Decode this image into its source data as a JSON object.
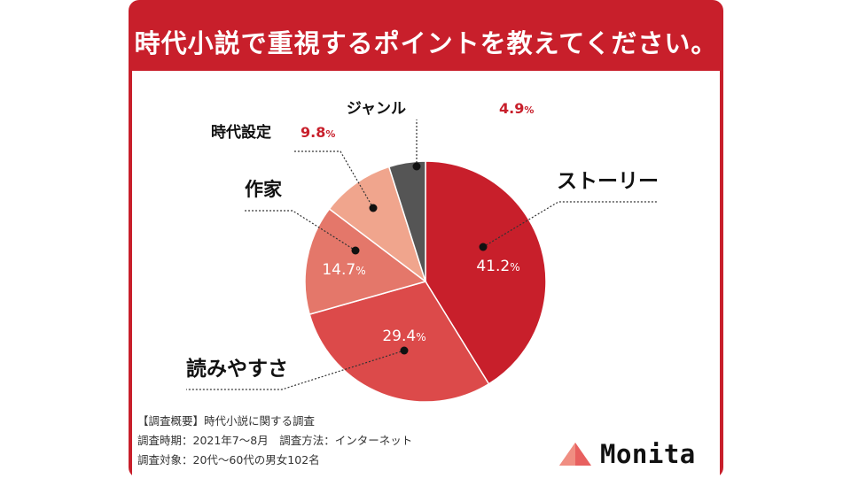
{
  "title": "時代小説で重視するポイントを教えてください。",
  "chart_data": {
    "type": "pie",
    "title": "時代小説で重視するポイントを教えてください。",
    "slices": [
      {
        "label": "ストーリー",
        "value": 41.2,
        "value_text": "41.2",
        "color": "#c81f2b"
      },
      {
        "label": "読みやすさ",
        "value": 29.4,
        "value_text": "29.4",
        "color": "#dc4a4a"
      },
      {
        "label": "作家",
        "value": 14.7,
        "value_text": "14.7",
        "color": "#e4776a"
      },
      {
        "label": "時代設定",
        "value": 9.8,
        "value_text": "9.8",
        "color": "#f0a58d"
      },
      {
        "label": "ジャンル",
        "value": 4.9,
        "value_text": "4.9",
        "color": "#555555"
      }
    ],
    "unit": "%"
  },
  "notes": {
    "line1": "【調査概要】時代小説に関する調査",
    "line2": "調査時期：2021年7〜8月　調査方法：インターネット",
    "line3": "調査対象：20代〜60代の男女102名"
  },
  "brand": {
    "name": "Monita",
    "color": "#e8605f"
  }
}
